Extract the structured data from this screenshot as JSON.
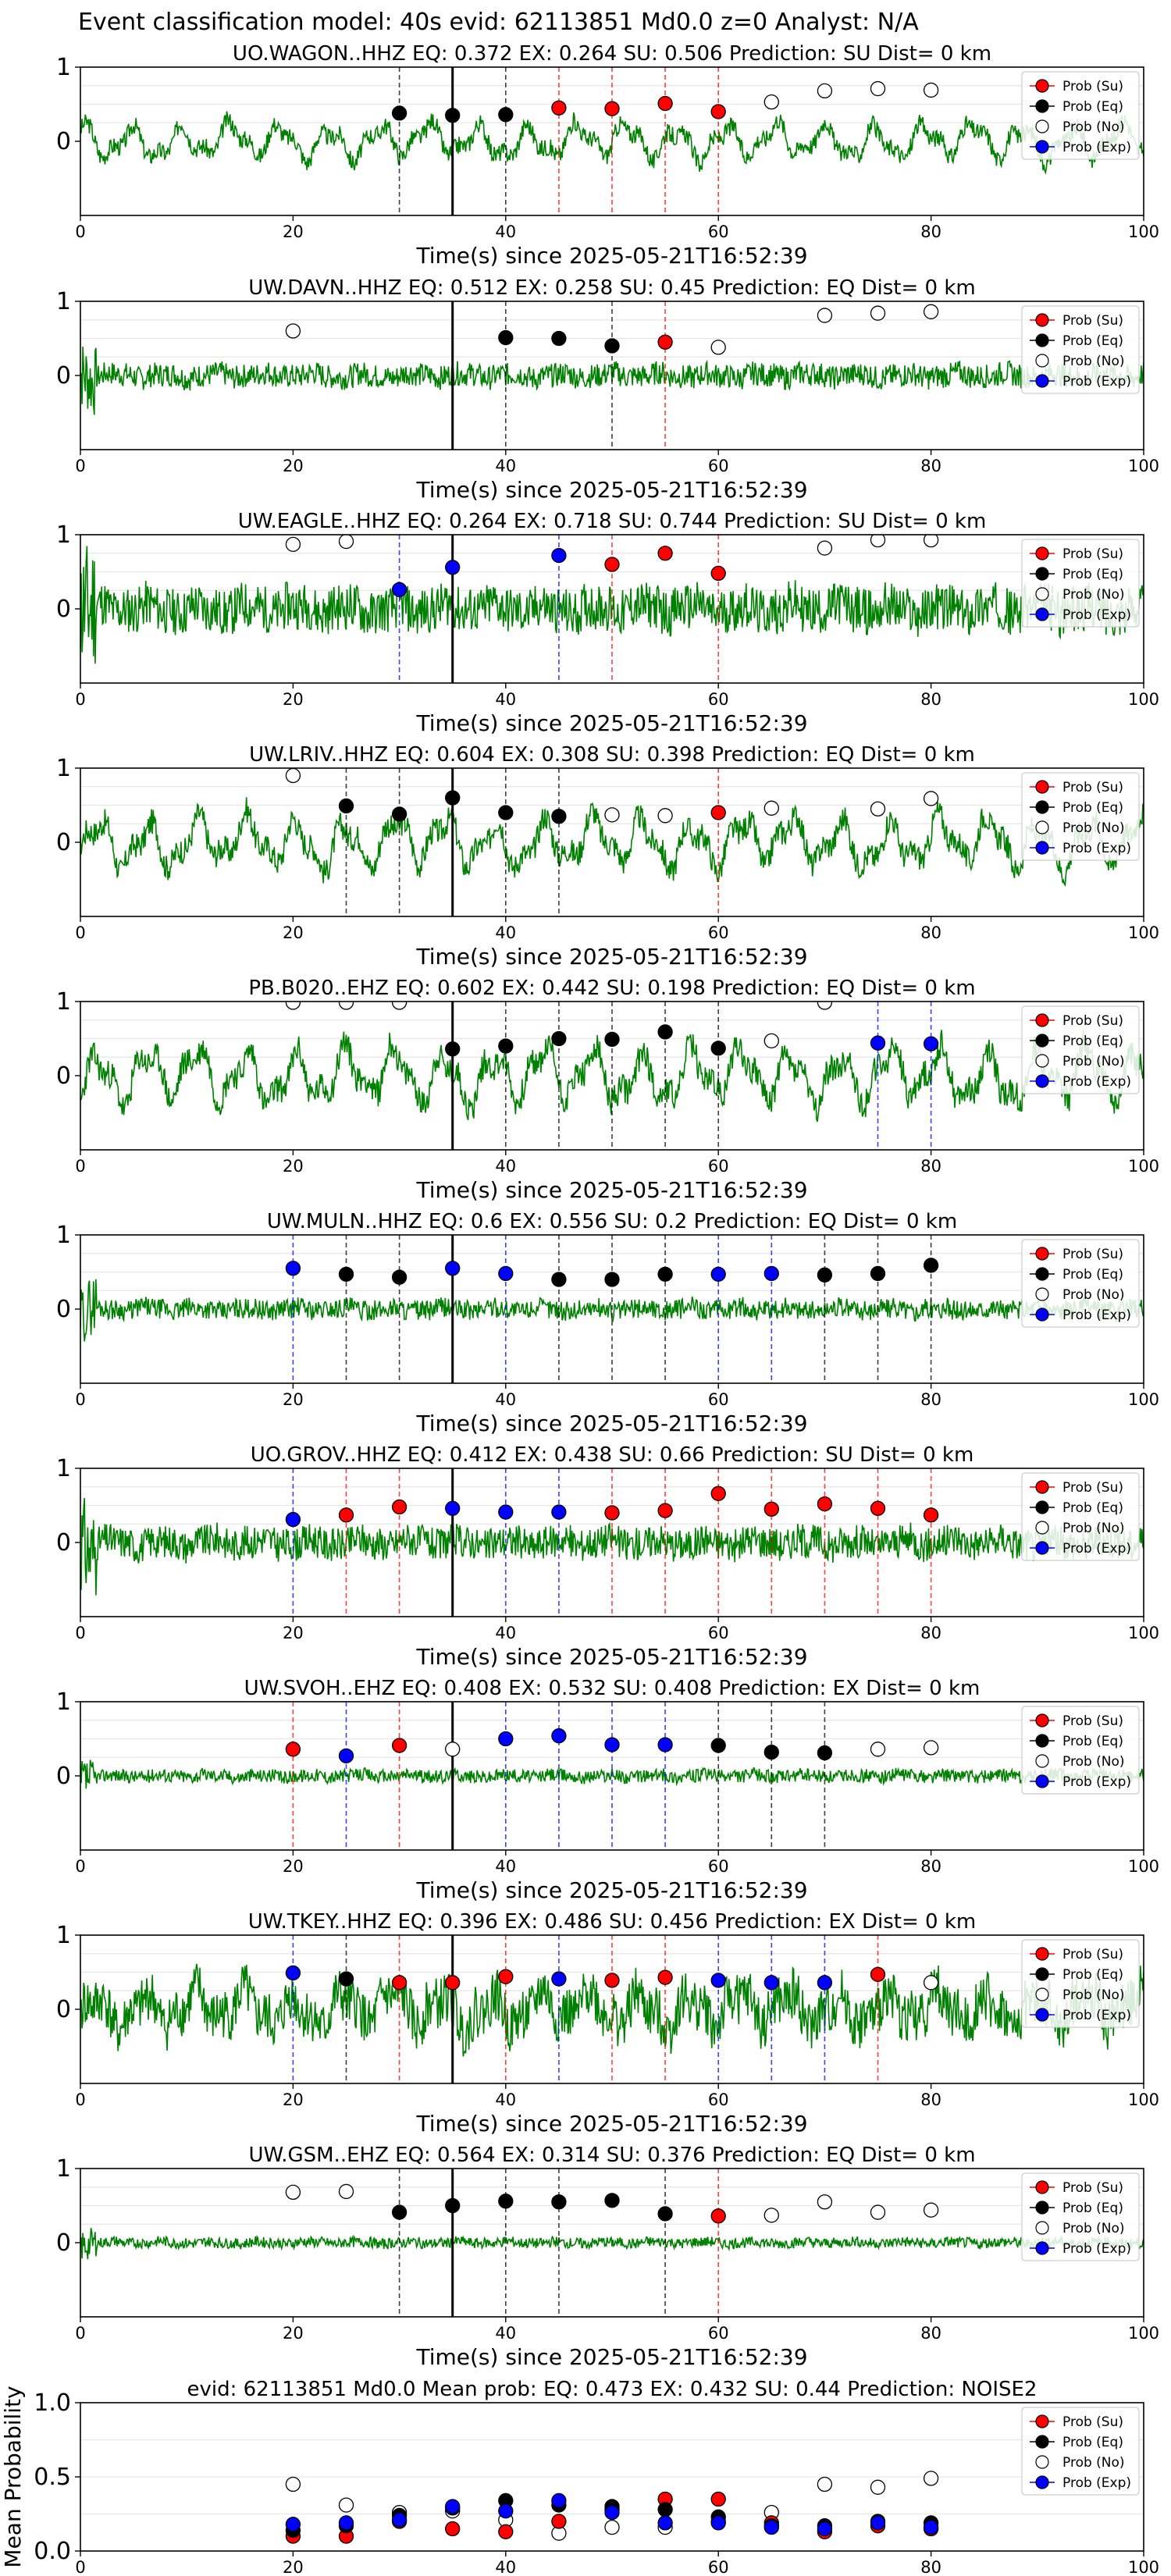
{
  "suptitle": "Event classification model: 40s evid: 62113851 Md0.0 z=0 Analyst: N/A",
  "legend": {
    "labels": [
      "Prob (Su)",
      "Prob (Eq)",
      "Prob (No)",
      "Prob (Exp)"
    ],
    "placement": "top-right"
  },
  "colors": {
    "su": "#ff0000",
    "eq": "#000000",
    "no": "#ffffff",
    "exp": "#0000ff",
    "wave": "#008000",
    "vline_su": "#ff0000",
    "vline_eq": "#000000",
    "vline_exp": "#0000ff"
  },
  "chart_data": [
    {
      "type": "line",
      "title": "UO.WAGON..HHZ   EQ: 0.372  EX: 0.264  SU: 0.506   Prediction: SU    Dist= 0 km",
      "xlabel": "Time(s) since 2025-05-21T16:52:39",
      "ylabel": "",
      "xlim": [
        0,
        100
      ],
      "ylim": [
        -1,
        1
      ],
      "xticks": [
        0,
        20,
        40,
        60,
        80,
        100
      ],
      "yticks": [
        0,
        1
      ],
      "origin_line_x": 35,
      "wave_amp": 0.35,
      "wave_seed": 3,
      "wave_style": "smooth",
      "points": {
        "eq": [
          [
            30,
            0.38
          ],
          [
            35,
            0.35
          ],
          [
            40,
            0.36
          ]
        ],
        "su": [
          [
            45,
            0.45
          ],
          [
            50,
            0.44
          ],
          [
            55,
            0.51
          ],
          [
            60,
            0.4
          ]
        ],
        "no": [
          [
            65,
            0.53
          ],
          [
            70,
            0.68
          ],
          [
            75,
            0.71
          ],
          [
            80,
            0.69
          ]
        ],
        "exp": []
      },
      "vlines": {
        "eq": [
          30,
          40
        ],
        "su": [
          45,
          50,
          55,
          60
        ],
        "exp": []
      }
    },
    {
      "type": "line",
      "title": "UW.DAVN..HHZ   EQ: 0.512  EX: 0.258  SU: 0.45   Prediction: EQ    Dist= 0 km",
      "xlabel": "Time(s) since 2025-05-21T16:52:39",
      "ylabel": "",
      "xlim": [
        0,
        100
      ],
      "ylim": [
        -1,
        1
      ],
      "xticks": [
        0,
        20,
        40,
        60,
        80,
        100
      ],
      "yticks": [
        0,
        1
      ],
      "origin_line_x": 35,
      "wave_amp": 0.18,
      "wave_seed": 7,
      "wave_style": "noisy",
      "points": {
        "eq": [
          [
            40,
            0.51
          ],
          [
            45,
            0.5
          ],
          [
            50,
            0.4
          ]
        ],
        "su": [
          [
            55,
            0.45
          ]
        ],
        "no": [
          [
            20,
            0.6
          ],
          [
            60,
            0.38
          ],
          [
            70,
            0.81
          ],
          [
            75,
            0.84
          ],
          [
            80,
            0.86
          ]
        ],
        "exp": []
      },
      "vlines": {
        "eq": [
          40,
          50
        ],
        "su": [
          55
        ],
        "exp": []
      }
    },
    {
      "type": "line",
      "title": "UW.EAGLE..HHZ   EQ: 0.264  EX: 0.718  SU: 0.744   Prediction: SU    Dist= 0 km",
      "xlabel": "Time(s) since 2025-05-21T16:52:39",
      "ylabel": "",
      "xlim": [
        0,
        100
      ],
      "ylim": [
        -1,
        1
      ],
      "xticks": [
        0,
        20,
        40,
        60,
        80,
        100
      ],
      "yticks": [
        0,
        1
      ],
      "origin_line_x": 35,
      "wave_amp": 0.35,
      "wave_seed": 11,
      "wave_style": "noisy",
      "points": {
        "eq": [],
        "su": [
          [
            50,
            0.6
          ],
          [
            55,
            0.75
          ],
          [
            60,
            0.48
          ]
        ],
        "no": [
          [
            20,
            0.87
          ],
          [
            25,
            0.91
          ],
          [
            70,
            0.82
          ],
          [
            75,
            0.93
          ],
          [
            80,
            0.93
          ]
        ],
        "exp": [
          [
            30,
            0.26
          ],
          [
            35,
            0.56
          ],
          [
            45,
            0.72
          ]
        ]
      },
      "vlines": {
        "eq": [],
        "su": [
          50,
          60
        ],
        "exp": [
          30,
          45
        ]
      }
    },
    {
      "type": "line",
      "title": "UW.LRIV..HHZ   EQ: 0.604  EX: 0.308  SU: 0.398   Prediction: EQ    Dist= 0 km",
      "xlabel": "Time(s) since 2025-05-21T16:52:39",
      "ylabel": "",
      "xlim": [
        0,
        100
      ],
      "ylim": [
        -1,
        1
      ],
      "xticks": [
        0,
        20,
        40,
        60,
        80,
        100
      ],
      "yticks": [
        0,
        1
      ],
      "origin_line_x": 35,
      "wave_amp": 0.5,
      "wave_seed": 17,
      "wave_style": "smooth",
      "points": {
        "eq": [
          [
            25,
            0.49
          ],
          [
            30,
            0.38
          ],
          [
            35,
            0.6
          ],
          [
            40,
            0.4
          ],
          [
            45,
            0.35
          ]
        ],
        "su": [
          [
            60,
            0.4
          ]
        ],
        "no": [
          [
            20,
            0.9
          ],
          [
            50,
            0.37
          ],
          [
            55,
            0.36
          ],
          [
            65,
            0.46
          ],
          [
            75,
            0.45
          ],
          [
            80,
            0.59
          ]
        ],
        "exp": []
      },
      "vlines": {
        "eq": [
          25,
          30,
          40,
          45
        ],
        "su": [
          60
        ],
        "exp": []
      }
    },
    {
      "type": "line",
      "title": "PB.B020..EHZ   EQ: 0.602  EX: 0.442  SU: 0.198   Prediction: EQ    Dist= 0 km",
      "xlabel": "Time(s) since 2025-05-21T16:52:39",
      "ylabel": "",
      "xlim": [
        0,
        100
      ],
      "ylim": [
        -1,
        1
      ],
      "xticks": [
        0,
        20,
        40,
        60,
        80,
        100
      ],
      "yticks": [
        0,
        1
      ],
      "origin_line_x": 35,
      "wave_amp": 0.55,
      "wave_seed": 23,
      "wave_style": "smooth",
      "points": {
        "eq": [
          [
            35,
            0.36
          ],
          [
            40,
            0.4
          ],
          [
            45,
            0.5
          ],
          [
            50,
            0.49
          ],
          [
            55,
            0.59
          ],
          [
            60,
            0.37
          ]
        ],
        "su": [],
        "no": [
          [
            20,
            1.0
          ],
          [
            25,
            1.0
          ],
          [
            30,
            1.0
          ],
          [
            65,
            0.47
          ],
          [
            70,
            1.0
          ]
        ],
        "exp": [
          [
            75,
            0.44
          ],
          [
            80,
            0.43
          ]
        ]
      },
      "vlines": {
        "eq": [
          35,
          40,
          45,
          50,
          55,
          60
        ],
        "su": [],
        "exp": [
          75,
          80
        ]
      }
    },
    {
      "type": "line",
      "title": "UW.MULN..HHZ   EQ: 0.6  EX: 0.556  SU: 0.2   Prediction: EQ    Dist= 0 km",
      "xlabel": "Time(s) since 2025-05-21T16:52:39",
      "ylabel": "",
      "xlim": [
        0,
        100
      ],
      "ylim": [
        -1,
        1
      ],
      "xticks": [
        0,
        20,
        40,
        60,
        80,
        100
      ],
      "yticks": [
        0,
        1
      ],
      "origin_line_x": 35,
      "wave_amp": 0.15,
      "wave_seed": 29,
      "wave_style": "noisy",
      "points": {
        "eq": [
          [
            25,
            0.47
          ],
          [
            30,
            0.43
          ],
          [
            45,
            0.4
          ],
          [
            50,
            0.4
          ],
          [
            55,
            0.47
          ],
          [
            70,
            0.46
          ],
          [
            75,
            0.48
          ],
          [
            80,
            0.59
          ]
        ],
        "su": [],
        "no": [],
        "exp": [
          [
            20,
            0.55
          ],
          [
            35,
            0.55
          ],
          [
            40,
            0.48
          ],
          [
            60,
            0.47
          ],
          [
            65,
            0.48
          ]
        ]
      },
      "vlines": {
        "eq": [
          25,
          30,
          45,
          50,
          55,
          70,
          75,
          80
        ],
        "su": [],
        "exp": [
          20,
          40,
          60,
          65
        ]
      }
    },
    {
      "type": "line",
      "title": "UO.GROV..HHZ   EQ: 0.412  EX: 0.438  SU: 0.66   Prediction: SU    Dist= 0 km",
      "xlabel": "Time(s) since 2025-05-21T16:52:39",
      "ylabel": "",
      "xlim": [
        0,
        100
      ],
      "ylim": [
        -1,
        1
      ],
      "xticks": [
        0,
        20,
        40,
        60,
        80,
        100
      ],
      "yticks": [
        0,
        1
      ],
      "origin_line_x": 35,
      "wave_amp": 0.25,
      "wave_seed": 31,
      "wave_style": "noisy",
      "points": {
        "eq": [],
        "su": [
          [
            25,
            0.37
          ],
          [
            30,
            0.48
          ],
          [
            50,
            0.4
          ],
          [
            55,
            0.43
          ],
          [
            60,
            0.66
          ],
          [
            65,
            0.45
          ],
          [
            70,
            0.52
          ],
          [
            75,
            0.46
          ],
          [
            80,
            0.37
          ]
        ],
        "no": [],
        "exp": [
          [
            20,
            0.31
          ],
          [
            35,
            0.46
          ],
          [
            40,
            0.41
          ],
          [
            45,
            0.41
          ]
        ]
      },
      "vlines": {
        "eq": [],
        "su": [
          25,
          30,
          50,
          55,
          60,
          65,
          70,
          75,
          80
        ],
        "exp": [
          20,
          40,
          45
        ]
      }
    },
    {
      "type": "line",
      "title": "UW.SVOH..EHZ   EQ: 0.408  EX: 0.532  SU: 0.408   Prediction: EX    Dist= 0 km",
      "xlabel": "Time(s) since 2025-05-21T16:52:39",
      "ylabel": "",
      "xlim": [
        0,
        100
      ],
      "ylim": [
        -1,
        1
      ],
      "xticks": [
        0,
        20,
        40,
        60,
        80,
        100
      ],
      "yticks": [
        0,
        1
      ],
      "origin_line_x": 35,
      "wave_amp": 0.1,
      "wave_seed": 37,
      "wave_style": "noisy",
      "points": {
        "eq": [
          [
            60,
            0.41
          ],
          [
            65,
            0.32
          ],
          [
            70,
            0.31
          ]
        ],
        "su": [
          [
            20,
            0.36
          ],
          [
            30,
            0.41
          ]
        ],
        "no": [
          [
            35,
            0.36
          ],
          [
            75,
            0.36
          ],
          [
            80,
            0.38
          ]
        ],
        "exp": [
          [
            25,
            0.27
          ],
          [
            40,
            0.5
          ],
          [
            45,
            0.54
          ],
          [
            50,
            0.42
          ],
          [
            55,
            0.42
          ]
        ]
      },
      "vlines": {
        "eq": [
          60,
          65,
          70
        ],
        "su": [
          20,
          30
        ],
        "exp": [
          25,
          40,
          45,
          50,
          55
        ]
      }
    },
    {
      "type": "line",
      "title": "UW.TKEY..HHZ   EQ: 0.396  EX: 0.486  SU: 0.456   Prediction: EX    Dist= 0 km",
      "xlabel": "Time(s) since 2025-05-21T16:52:39",
      "ylabel": "",
      "xlim": [
        0,
        100
      ],
      "ylim": [
        -1,
        1
      ],
      "xticks": [
        0,
        20,
        40,
        60,
        80,
        100
      ],
      "yticks": [
        0,
        1
      ],
      "origin_line_x": 35,
      "wave_amp": 0.5,
      "wave_seed": 41,
      "wave_style": "mixed",
      "points": {
        "eq": [
          [
            25,
            0.41
          ]
        ],
        "su": [
          [
            30,
            0.36
          ],
          [
            35,
            0.36
          ],
          [
            40,
            0.44
          ],
          [
            50,
            0.39
          ],
          [
            55,
            0.43
          ],
          [
            75,
            0.47
          ]
        ],
        "no": [
          [
            80,
            0.36
          ]
        ],
        "exp": [
          [
            20,
            0.49
          ],
          [
            45,
            0.41
          ],
          [
            60,
            0.39
          ],
          [
            65,
            0.36
          ],
          [
            70,
            0.36
          ]
        ]
      },
      "vlines": {
        "eq": [
          25
        ],
        "su": [
          30,
          40,
          50,
          55,
          75
        ],
        "exp": [
          20,
          45,
          60,
          65,
          70
        ]
      }
    },
    {
      "type": "line",
      "title": "UW.GSM..EHZ   EQ: 0.564  EX: 0.314  SU: 0.376   Prediction: EQ    Dist= 0 km",
      "xlabel": "Time(s) since 2025-05-21T16:52:39",
      "ylabel": "",
      "xlim": [
        0,
        100
      ],
      "ylim": [
        -1,
        1
      ],
      "xticks": [
        0,
        20,
        40,
        60,
        80,
        100
      ],
      "yticks": [
        0,
        1
      ],
      "origin_line_x": 35,
      "wave_amp": 0.08,
      "wave_seed": 43,
      "wave_style": "noisy",
      "points": {
        "eq": [
          [
            30,
            0.41
          ],
          [
            35,
            0.5
          ],
          [
            40,
            0.56
          ],
          [
            45,
            0.55
          ],
          [
            50,
            0.57
          ],
          [
            55,
            0.39
          ]
        ],
        "su": [
          [
            60,
            0.36
          ]
        ],
        "no": [
          [
            20,
            0.68
          ],
          [
            25,
            0.69
          ],
          [
            65,
            0.37
          ],
          [
            70,
            0.55
          ],
          [
            75,
            0.41
          ],
          [
            80,
            0.44
          ]
        ],
        "exp": []
      },
      "vlines": {
        "eq": [
          30,
          40,
          45,
          55
        ],
        "su": [
          60
        ],
        "exp": []
      }
    },
    {
      "type": "scatter",
      "title": "evid: 62113851  Md0.0   Mean prob:   EQ: 0.473  EX: 0.432  SU: 0.44   Prediction: NOISE2",
      "xlabel": "",
      "ylabel": "Mean Probability",
      "xlim": [
        0,
        100
      ],
      "ylim": [
        0,
        1
      ],
      "xticks": [
        0,
        20,
        40,
        60,
        80,
        100
      ],
      "yticks": [
        0.0,
        0.5,
        1.0
      ],
      "ytick_labels": [
        "0.0",
        "0.5",
        "1.0"
      ],
      "points": {
        "no": [
          [
            20,
            0.45
          ],
          [
            25,
            0.31
          ],
          [
            30,
            0.26
          ],
          [
            35,
            0.27
          ],
          [
            40,
            0.21
          ],
          [
            45,
            0.12
          ],
          [
            50,
            0.16
          ],
          [
            55,
            0.16
          ],
          [
            60,
            0.2
          ],
          [
            65,
            0.26
          ],
          [
            70,
            0.45
          ],
          [
            75,
            0.43
          ],
          [
            80,
            0.49
          ]
        ],
        "su": [
          [
            20,
            0.1
          ],
          [
            25,
            0.1
          ],
          [
            30,
            0.2
          ],
          [
            35,
            0.15
          ],
          [
            40,
            0.13
          ],
          [
            45,
            0.2
          ],
          [
            50,
            0.28
          ],
          [
            55,
            0.35
          ],
          [
            60,
            0.35
          ],
          [
            65,
            0.19
          ],
          [
            70,
            0.13
          ],
          [
            75,
            0.17
          ],
          [
            80,
            0.15
          ]
        ],
        "eq": [
          [
            20,
            0.14
          ],
          [
            25,
            0.17
          ],
          [
            30,
            0.24
          ],
          [
            35,
            0.29
          ],
          [
            40,
            0.34
          ],
          [
            45,
            0.31
          ],
          [
            50,
            0.3
          ],
          [
            55,
            0.28
          ],
          [
            60,
            0.23
          ],
          [
            65,
            0.17
          ],
          [
            70,
            0.17
          ],
          [
            75,
            0.2
          ],
          [
            80,
            0.19
          ]
        ],
        "exp": [
          [
            20,
            0.18
          ],
          [
            25,
            0.19
          ],
          [
            30,
            0.21
          ],
          [
            35,
            0.3
          ],
          [
            40,
            0.27
          ],
          [
            45,
            0.34
          ],
          [
            50,
            0.26
          ],
          [
            55,
            0.19
          ],
          [
            60,
            0.19
          ],
          [
            65,
            0.16
          ],
          [
            70,
            0.15
          ],
          [
            75,
            0.19
          ],
          [
            80,
            0.16
          ]
        ]
      },
      "vlines": {
        "eq": [],
        "su": [],
        "exp": []
      }
    }
  ]
}
